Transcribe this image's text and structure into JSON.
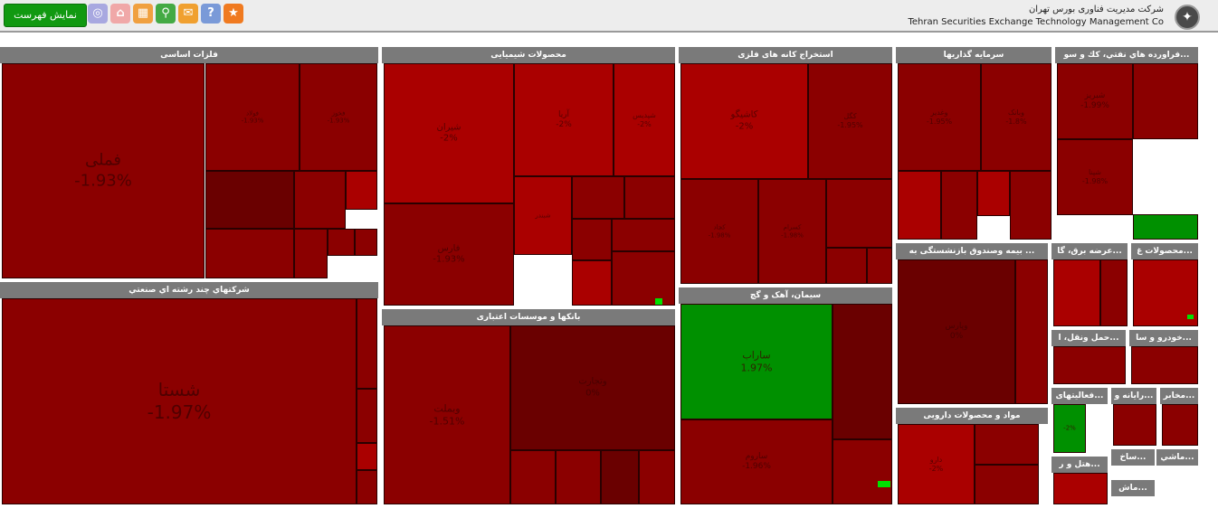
{
  "header": {
    "show_button": "نمایش فهرست",
    "company_fa": "شرکت مدیریت فناوری بورس تهران",
    "company_en": "Tehran Securities Exchange Technology Management Co",
    "tools": [
      {
        "icon": "globe-icon",
        "color": "#a8a8e0",
        "glyph": "◎"
      },
      {
        "icon": "home-icon",
        "color": "#f0a8a8",
        "glyph": "⌂"
      },
      {
        "icon": "table-icon",
        "color": "#f0a040",
        "glyph": "▦"
      },
      {
        "icon": "search-icon",
        "color": "#44aa44",
        "glyph": "⚲"
      },
      {
        "icon": "comment-icon",
        "color": "#f0a030",
        "glyph": "✉"
      },
      {
        "icon": "help-icon",
        "color": "#7a9ad8",
        "glyph": "?"
      },
      {
        "icon": "new-badge-icon",
        "color": "#f07a20",
        "glyph": "★"
      }
    ]
  },
  "colors": {
    "red": "#8b0000",
    "red_bright": "#aa0000",
    "red_dark": "#6a0000",
    "green": "#009000",
    "green_bright": "#00e000"
  },
  "sectors": [
    {
      "title": "فلزات اساسی",
      "tiles": [
        {
          "n": "فملی",
          "p": "-1.93%",
          "fs": 18
        },
        {
          "n": "فولاد",
          "p": "-1.93%",
          "fs": 7
        },
        {
          "n": "فخوز",
          "p": "-1.93%",
          "fs": 7
        },
        {
          "n": "",
          "p": "",
          "fs": 7
        },
        {
          "n": "",
          "p": "",
          "fs": 7
        },
        {
          "n": "",
          "p": "",
          "fs": 7
        },
        {
          "n": "",
          "p": "",
          "fs": 7
        },
        {
          "n": "",
          "p": "",
          "fs": 7
        },
        {
          "n": "",
          "p": "",
          "fs": 7
        },
        {
          "n": "",
          "p": "",
          "fs": 7
        }
      ]
    },
    {
      "title": "شرکتهاي چند رشته اي صنعتي",
      "tiles": [
        {
          "n": "شستا",
          "p": "-1.97%",
          "fs": 20
        },
        {
          "n": "",
          "p": "",
          "fs": 7
        },
        {
          "n": "",
          "p": "",
          "fs": 7
        },
        {
          "n": "",
          "p": "",
          "fs": 7
        },
        {
          "n": "",
          "p": "",
          "fs": 7
        }
      ]
    },
    {
      "title": "محصولات شیمیایی",
      "tiles": [
        {
          "n": "شیران",
          "p": "-2%",
          "fs": 10
        },
        {
          "n": "آریا",
          "p": "-2%",
          "fs": 9
        },
        {
          "n": "شپدیس",
          "p": "-2%",
          "fs": 8
        },
        {
          "n": "فارس",
          "p": "-1.93%",
          "fs": 10
        },
        {
          "n": "شبندر",
          "p": "",
          "fs": 7
        },
        {
          "n": "",
          "p": "",
          "fs": 7
        },
        {
          "n": "",
          "p": "",
          "fs": 7
        },
        {
          "n": "",
          "p": "",
          "fs": 7
        },
        {
          "n": "",
          "p": "",
          "fs": 7
        },
        {
          "n": "",
          "p": "",
          "fs": 7
        },
        {
          "n": "",
          "p": "",
          "fs": 7
        }
      ]
    },
    {
      "title": "بانکها و موسسات اعتباری",
      "tiles": [
        {
          "n": "وبملت",
          "p": "-1.51%",
          "fs": 11
        },
        {
          "n": "وتجارت",
          "p": "0%",
          "fs": 10
        },
        {
          "n": "",
          "p": "",
          "fs": 7
        },
        {
          "n": "",
          "p": "",
          "fs": 7
        },
        {
          "n": "",
          "p": "",
          "fs": 7
        },
        {
          "n": "",
          "p": "",
          "fs": 7
        }
      ]
    },
    {
      "title": "استخراج کانه های فلزی",
      "tiles": [
        {
          "n": "کاشیگو",
          "p": "-2%",
          "fs": 10
        },
        {
          "n": "کگل",
          "p": "-1.95%",
          "fs": 8
        },
        {
          "n": "کچاد",
          "p": "-1.98%",
          "fs": 7
        },
        {
          "n": "کسرام",
          "p": "-1.98%",
          "fs": 7
        },
        {
          "n": "",
          "p": "",
          "fs": 7
        },
        {
          "n": "",
          "p": "",
          "fs": 7
        }
      ]
    },
    {
      "title": "سیمان، آهک و گچ",
      "tiles": [
        {
          "n": "ساراب",
          "p": "1.97%",
          "fs": 11
        },
        {
          "n": "",
          "p": "",
          "fs": 7
        },
        {
          "n": "ساروم",
          "p": "-1.96%",
          "fs": 9
        },
        {
          "n": "",
          "p": "",
          "fs": 7
        }
      ]
    },
    {
      "title": "سرمایه گذاریها",
      "tiles": [
        {
          "n": "وغدیر",
          "p": "-1.95%",
          "fs": 8
        },
        {
          "n": "وبانک",
          "p": "-1.8%",
          "fs": 8
        },
        {
          "n": "",
          "p": "",
          "fs": 7
        },
        {
          "n": "",
          "p": "",
          "fs": 7
        },
        {
          "n": "",
          "p": "",
          "fs": 7
        }
      ]
    },
    {
      "title": "...فراورده هاي نفتي، كك و سو",
      "tiles": [
        {
          "n": "شبریز",
          "p": "-1.99%",
          "fs": 9
        },
        {
          "n": "شپنا",
          "p": "-1.98%",
          "fs": 8
        },
        {
          "n": "",
          "p": "",
          "fs": 7
        },
        {
          "n": "",
          "p": "",
          "fs": 7
        }
      ]
    },
    {
      "title": "... بیمه وصندوق بازنشستگی به",
      "tiles": [
        {
          "n": "وپارس",
          "p": "0%",
          "fs": 9
        },
        {
          "n": "",
          "p": "",
          "fs": 7
        }
      ]
    },
    {
      "title": "...عرضه برق، گا",
      "tiles": [
        {
          "n": "",
          "p": "",
          "fs": 7
        },
        {
          "n": "",
          "p": "",
          "fs": 7
        }
      ]
    },
    {
      "title": "...محصولات غ",
      "tiles": [
        {
          "n": "",
          "p": "",
          "fs": 7
        }
      ]
    },
    {
      "title": "...حمل ونقل، ا",
      "tiles": [
        {
          "n": "",
          "p": "",
          "fs": 7
        }
      ]
    },
    {
      "title": "...خودرو و سا",
      "tiles": [
        {
          "n": "",
          "p": "",
          "fs": 7
        }
      ]
    },
    {
      "title": "مواد و محصولات دارویی",
      "tiles": [
        {
          "n": "دارو",
          "p": "-2%",
          "fs": 8
        },
        {
          "n": "",
          "p": "",
          "fs": 7
        },
        {
          "n": "",
          "p": "",
          "fs": 7
        }
      ]
    },
    {
      "title": "...فعالیتهای",
      "tiles": [
        {
          "n": "",
          "p": "-2%",
          "fs": 7
        }
      ]
    },
    {
      "title": "...رایانه و",
      "tiles": [
        {
          "n": "",
          "p": "",
          "fs": 7
        }
      ]
    },
    {
      "title": "...مخابر",
      "tiles": [
        {
          "n": "",
          "p": "",
          "fs": 7
        }
      ]
    },
    {
      "title": "...هتل و ر",
      "tiles": [
        {
          "n": "",
          "p": "",
          "fs": 7
        }
      ]
    },
    {
      "title": "...ساخ",
      "tiles": []
    },
    {
      "title": "...ماشي",
      "tiles": []
    },
    {
      "title": "...ماش",
      "tiles": []
    }
  ]
}
